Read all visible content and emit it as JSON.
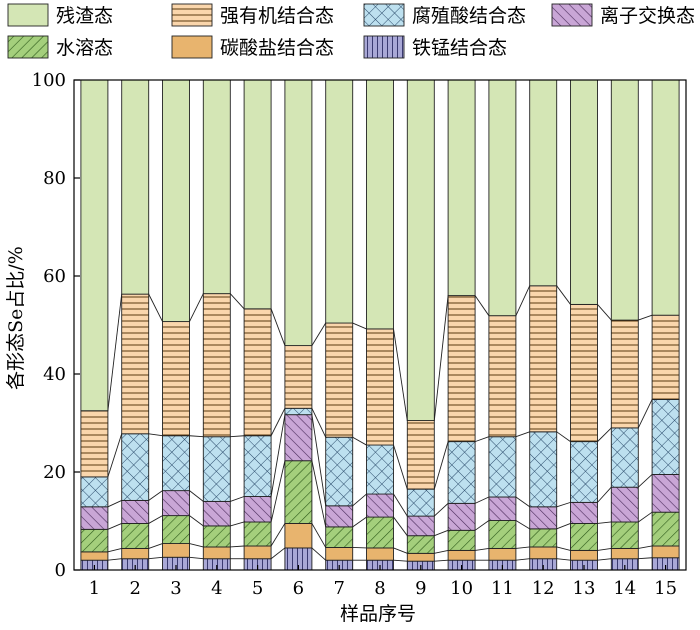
{
  "chart_data": {
    "type": "bar",
    "stacked": true,
    "percent_stacked": true,
    "xlabel": "样品序号",
    "ylabel": "各形态Se占比/%",
    "ylim": [
      0,
      100
    ],
    "yticks": [
      0,
      20,
      40,
      60,
      80,
      100
    ],
    "categories": [
      "1",
      "2",
      "3",
      "4",
      "5",
      "6",
      "7",
      "8",
      "9",
      "10",
      "11",
      "12",
      "13",
      "14",
      "15"
    ],
    "legend_position": "top",
    "connector_lines": true,
    "series": [
      {
        "name": "铁锰结合态",
        "color": "#a9a8d6",
        "pattern": "vertical-lines",
        "values": [
          2.0,
          2.3,
          2.6,
          2.3,
          2.3,
          4.5,
          2.0,
          2.0,
          1.8,
          2.0,
          2.0,
          2.3,
          2.0,
          2.3,
          2.5
        ]
      },
      {
        "name": "碳酸盐结合态",
        "color": "#e8b46e",
        "pattern": "solid",
        "values": [
          1.7,
          2.1,
          2.8,
          2.4,
          2.6,
          5.0,
          2.6,
          2.5,
          1.6,
          2.0,
          2.4,
          2.4,
          2.0,
          2.1,
          2.4
        ]
      },
      {
        "name": "水溶态",
        "color": "#a4cf7c",
        "pattern": "diagonal",
        "values": [
          4.6,
          5.1,
          5.7,
          4.3,
          4.9,
          12.8,
          4.2,
          6.3,
          3.6,
          4.1,
          5.7,
          3.7,
          5.5,
          5.4,
          6.9
        ]
      },
      {
        "name": "离子交换态",
        "color": "#c9a6d6",
        "pattern": "diagonal",
        "values": [
          4.6,
          4.7,
          5.1,
          5.0,
          5.2,
          9.4,
          4.3,
          4.7,
          4.0,
          5.5,
          4.8,
          4.5,
          4.3,
          7.1,
          7.7
        ]
      },
      {
        "name": "腐殖酸结合态",
        "color": "#bde0ef",
        "pattern": "crosshatch",
        "values": [
          6.1,
          13.6,
          11.2,
          13.2,
          12.4,
          1.3,
          14.0,
          10.0,
          5.5,
          12.6,
          12.3,
          15.3,
          12.4,
          12.1,
          15.3
        ]
      },
      {
        "name": "强有机结合态",
        "color": "#fad6ac",
        "pattern": "horizontal-lines",
        "values": [
          13.5,
          28.5,
          23.3,
          29.2,
          25.9,
          12.8,
          23.3,
          23.7,
          14.0,
          29.8,
          24.7,
          29.8,
          28.0,
          22.0,
          17.2
        ]
      },
      {
        "name": "残渣态",
        "color": "#d4e6b5",
        "pattern": "solid",
        "values": [
          67.5,
          43.7,
          49.3,
          43.6,
          46.7,
          54.2,
          49.6,
          50.8,
          69.5,
          44.0,
          48.1,
          42.0,
          45.8,
          49.0,
          48.0
        ]
      }
    ],
    "legend_rows": [
      [
        "残渣态",
        "强有机结合态",
        "腐殖酸结合态",
        "离子交换态"
      ],
      [
        "水溶态",
        "碳酸盐结合态",
        "铁锰结合态"
      ]
    ]
  }
}
